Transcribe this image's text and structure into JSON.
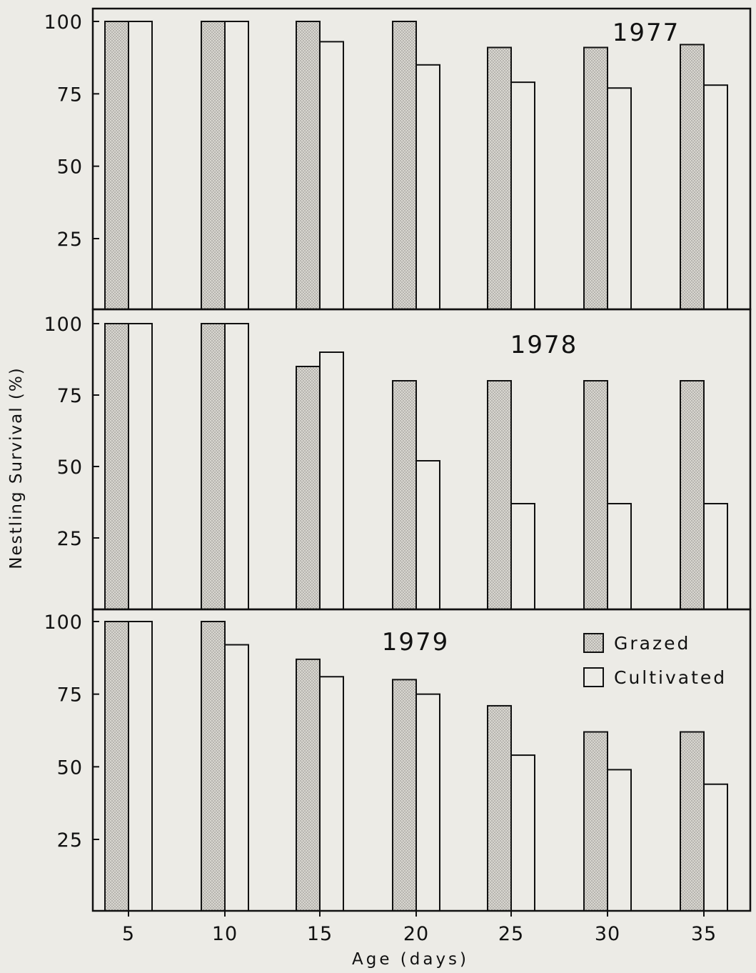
{
  "chart_data": {
    "type": "bar",
    "ylabel": "Nestling Survival (%)",
    "xlabel": "Age (days)",
    "categories": [
      "5",
      "10",
      "15",
      "20",
      "25",
      "30",
      "35"
    ],
    "yticks": [
      "25",
      "50",
      "75",
      "100"
    ],
    "ylim": [
      0,
      100
    ],
    "grid": false,
    "legend": {
      "placement": "inside panel 1979, top-right",
      "entries": [
        {
          "name": "Grazed",
          "fill": "stippled"
        },
        {
          "name": "Cultivated",
          "fill": "open"
        }
      ]
    },
    "colors": {
      "background": "#ecebe6",
      "grazed": "#d6d4ce",
      "cultivated": "#ecebe6",
      "ink": "#111111"
    },
    "panels": [
      {
        "label": "1977",
        "series": [
          {
            "name": "Grazed",
            "values": [
              100,
              100,
              100,
              100,
              91,
              91,
              92
            ]
          },
          {
            "name": "Cultivated",
            "values": [
              100,
              100,
              93,
              85,
              79,
              77,
              78
            ]
          }
        ]
      },
      {
        "label": "1978",
        "series": [
          {
            "name": "Grazed",
            "values": [
              100,
              100,
              85,
              80,
              80,
              80,
              80
            ]
          },
          {
            "name": "Cultivated",
            "values": [
              100,
              100,
              90,
              52,
              37,
              37,
              37
            ]
          }
        ]
      },
      {
        "label": "1979",
        "series": [
          {
            "name": "Grazed",
            "values": [
              100,
              100,
              87,
              80,
              71,
              62,
              62
            ]
          },
          {
            "name": "Cultivated",
            "values": [
              100,
              92,
              81,
              75,
              54,
              49,
              44
            ]
          }
        ]
      }
    ]
  }
}
